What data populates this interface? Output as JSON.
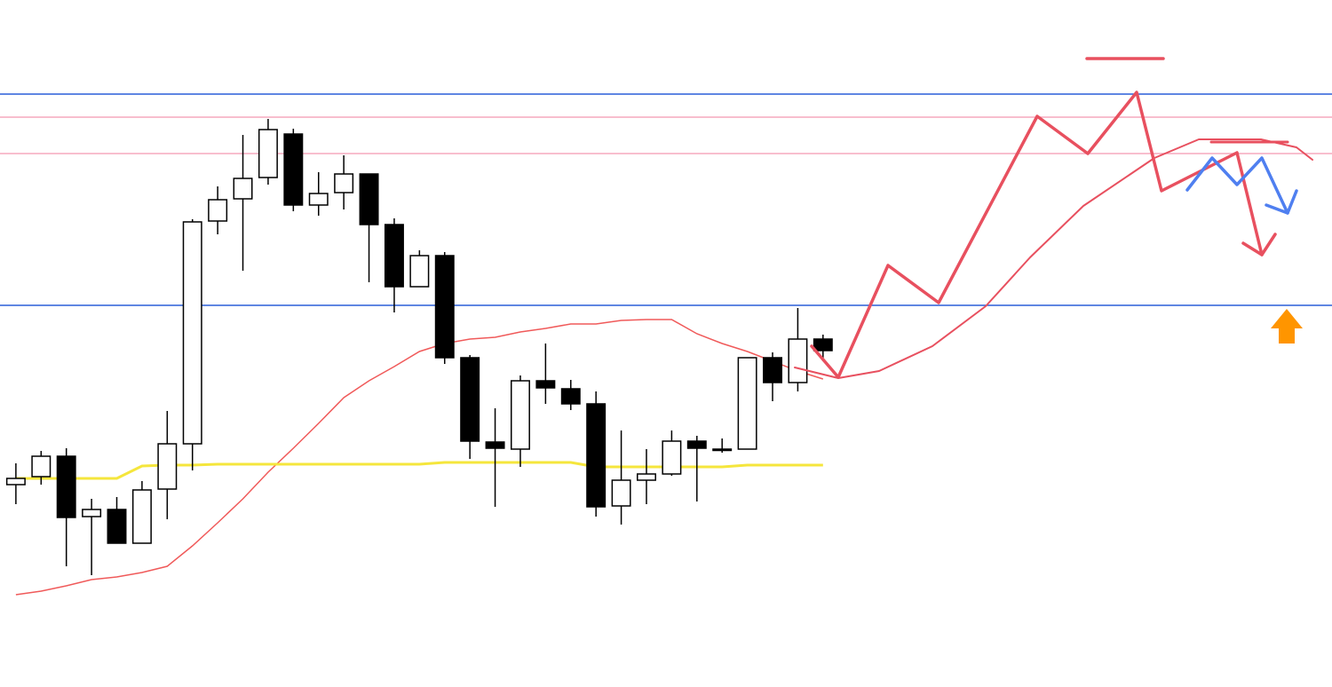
{
  "chart_data": {
    "type": "candlestick",
    "x": [
      0,
      1,
      2,
      3,
      4,
      5,
      6,
      7,
      8,
      9,
      10,
      11,
      12,
      13,
      14,
      15,
      16,
      17,
      18,
      19,
      20,
      21,
      22,
      23,
      24,
      25,
      26,
      27,
      28,
      29,
      30,
      31,
      32
    ],
    "open": [
      228,
      237,
      260,
      192,
      200,
      162,
      223,
      274,
      525,
      550,
      574,
      623,
      543,
      557,
      578,
      521,
      451,
      486,
      371,
      276,
      268,
      345,
      336,
      319,
      204,
      233,
      240,
      277,
      268,
      268,
      371,
      343,
      392
    ],
    "high": [
      252,
      266,
      269,
      212,
      214,
      232,
      311,
      527,
      564,
      622,
      640,
      629,
      580,
      599,
      578,
      528,
      492,
      490,
      374,
      314,
      351,
      387,
      346,
      333,
      289,
      268,
      289,
      283,
      280,
      371,
      377,
      427,
      397
    ],
    "low": [
      206,
      228,
      136,
      126,
      162,
      162,
      189,
      244,
      510,
      469,
      566,
      536,
      531,
      538,
      456,
      422,
      451,
      364,
      257,
      203,
      248,
      319,
      312,
      192,
      183,
      206,
      238,
      209,
      264,
      268,
      322,
      333,
      367
    ],
    "close": [
      235,
      260,
      191,
      200,
      162,
      222,
      274,
      524,
      549,
      573,
      628,
      543,
      556,
      578,
      521,
      451,
      486,
      371,
      277,
      269,
      345,
      337,
      319,
      203,
      233,
      240,
      277,
      269,
      268,
      371,
      343,
      392,
      379
    ],
    "up_color": "#ffffff",
    "down_color": "#000000",
    "series": [
      {
        "color": "#f05a5a",
        "values": [
          104,
          108,
          114,
          121,
          124,
          129,
          136,
          159,
          185,
          212,
          242,
          269,
          297,
          326,
          345,
          361,
          378,
          387,
          392,
          394,
          400,
          404,
          409,
          409,
          413,
          414,
          414,
          398,
          387,
          378,
          367,
          356,
          347
        ]
      },
      {
        "color": "#f5e63c",
        "values": [
          235,
          235,
          235,
          235,
          235,
          249,
          250,
          250,
          251,
          251,
          251,
          251,
          251,
          251,
          251,
          251,
          251,
          253,
          253,
          253,
          253,
          253,
          253,
          248,
          248,
          248,
          248,
          248,
          248,
          250,
          250,
          250,
          250
        ]
      }
    ],
    "levels": [
      {
        "value": 668,
        "color": "#2a5fd8"
      },
      {
        "value": 642,
        "color": "#f5a8bd"
      },
      {
        "value": 601,
        "color": "#f5a8bd"
      },
      {
        "value": 430,
        "color": "#2a5fd8"
      }
    ],
    "xlim": [
      -0.63,
      52.18
    ],
    "ylim": [
      0,
      774
    ]
  }
}
